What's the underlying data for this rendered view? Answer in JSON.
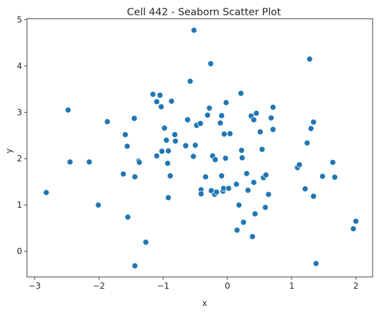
{
  "chart_data": {
    "type": "scatter",
    "title": "Cell 442 - Seaborn Scatter Plot",
    "xlabel": "x",
    "ylabel": "y",
    "xlim": [
      -3.12,
      2.26
    ],
    "ylim": [
      -0.55,
      5.02
    ],
    "xticks": [
      -3,
      -2,
      -1,
      0,
      1,
      2
    ],
    "yticks": [
      0,
      1,
      2,
      3,
      4,
      5
    ],
    "grid": false,
    "marker_color": "#1f77b4",
    "points": [
      [
        -2.82,
        1.27
      ],
      [
        -2.48,
        3.05
      ],
      [
        -2.45,
        1.93
      ],
      [
        -2.15,
        1.93
      ],
      [
        -2.01,
        1.0
      ],
      [
        -1.87,
        2.8
      ],
      [
        -1.62,
        1.67
      ],
      [
        -1.59,
        2.52
      ],
      [
        -1.56,
        2.27
      ],
      [
        -1.55,
        0.74
      ],
      [
        -1.45,
        2.87
      ],
      [
        -1.44,
        1.61
      ],
      [
        -1.44,
        -0.31
      ],
      [
        -1.38,
        1.95
      ],
      [
        -1.37,
        1.92
      ],
      [
        -1.27,
        0.2
      ],
      [
        -1.16,
        3.39
      ],
      [
        -1.1,
        3.23
      ],
      [
        -1.1,
        2.06
      ],
      [
        -1.05,
        3.37
      ],
      [
        -1.03,
        3.12
      ],
      [
        -1.02,
        2.16
      ],
      [
        -0.98,
        2.66
      ],
      [
        -0.95,
        2.4
      ],
      [
        -0.93,
        1.9
      ],
      [
        -0.92,
        2.17
      ],
      [
        -0.92,
        1.16
      ],
      [
        -0.89,
        1.63
      ],
      [
        -0.87,
        3.24
      ],
      [
        -0.82,
        2.52
      ],
      [
        -0.81,
        2.38
      ],
      [
        -0.65,
        2.28
      ],
      [
        -0.62,
        2.84
      ],
      [
        -0.58,
        3.67
      ],
      [
        -0.53,
        2.05
      ],
      [
        -0.52,
        4.77
      ],
      [
        -0.5,
        2.29
      ],
      [
        -0.48,
        2.72
      ],
      [
        -0.42,
        2.76
      ],
      [
        -0.41,
        1.33
      ],
      [
        -0.41,
        1.24
      ],
      [
        -0.34,
        1.61
      ],
      [
        -0.31,
        2.94
      ],
      [
        -0.28,
        3.09
      ],
      [
        -0.26,
        4.05
      ],
      [
        -0.25,
        1.31
      ],
      [
        -0.23,
        2.06
      ],
      [
        -0.2,
        1.23
      ],
      [
        -0.19,
        1.98
      ],
      [
        -0.17,
        1.28
      ],
      [
        -0.11,
        2.77
      ],
      [
        -0.09,
        2.93
      ],
      [
        -0.09,
        1.63
      ],
      [
        -0.07,
        1.3
      ],
      [
        -0.06,
        1.36
      ],
      [
        -0.05,
        2.53
      ],
      [
        -0.03,
        2.01
      ],
      [
        -0.02,
        3.21
      ],
      [
        0.02,
        1.36
      ],
      [
        0.04,
        2.54
      ],
      [
        0.14,
        1.45
      ],
      [
        0.15,
        0.46
      ],
      [
        0.18,
        1.0
      ],
      [
        0.21,
        3.41
      ],
      [
        0.22,
        2.18
      ],
      [
        0.23,
        2.02
      ],
      [
        0.25,
        0.63
      ],
      [
        0.3,
        1.68
      ],
      [
        0.32,
        1.32
      ],
      [
        0.37,
        2.92
      ],
      [
        0.39,
        0.32
      ],
      [
        0.41,
        2.84
      ],
      [
        0.41,
        1.49
      ],
      [
        0.43,
        0.81
      ],
      [
        0.45,
        2.98
      ],
      [
        0.51,
        2.58
      ],
      [
        0.54,
        2.2
      ],
      [
        0.56,
        1.59
      ],
      [
        0.59,
        0.95
      ],
      [
        0.6,
        1.65
      ],
      [
        0.64,
        1.23
      ],
      [
        0.68,
        2.88
      ],
      [
        0.71,
        3.11
      ],
      [
        0.71,
        2.63
      ],
      [
        1.09,
        1.81
      ],
      [
        1.12,
        1.87
      ],
      [
        1.21,
        1.35
      ],
      [
        1.24,
        2.34
      ],
      [
        1.28,
        4.15
      ],
      [
        1.3,
        2.65
      ],
      [
        1.34,
        1.19
      ],
      [
        1.34,
        2.79
      ],
      [
        1.38,
        -0.26
      ],
      [
        1.48,
        1.62
      ],
      [
        1.64,
        1.92
      ],
      [
        1.67,
        1.6
      ],
      [
        1.96,
        0.49
      ],
      [
        2.0,
        0.65
      ]
    ]
  }
}
